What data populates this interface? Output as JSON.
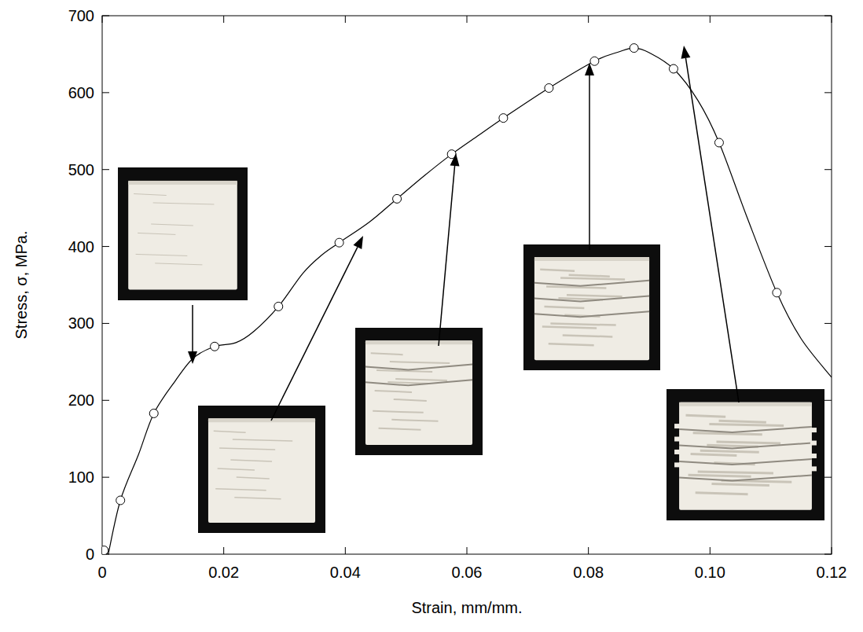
{
  "chart_data": {
    "type": "line",
    "x_label": "Strain, mm/mm.",
    "y_label": "Stress, σ, MPa.",
    "xlim": [
      0,
      0.12
    ],
    "ylim": [
      0,
      700
    ],
    "xticks": [
      0,
      0.02,
      0.04,
      0.06,
      0.08,
      {
        "value": 0.1,
        "label": "0.10"
      },
      0.12
    ],
    "yticks": [
      0,
      100,
      200,
      300,
      400,
      500,
      600,
      700
    ],
    "grid": false,
    "series": [
      {
        "x": [
          0.001,
          0.003,
          0.006,
          0.0085,
          0.012,
          0.015,
          0.0185,
          0.022,
          0.025,
          0.029,
          0.033,
          0.036,
          0.039,
          0.044,
          0.0485,
          0.053,
          0.0575,
          0.062,
          0.066,
          0.0735,
          0.081,
          0.085,
          0.0875,
          0.09,
          0.094,
          0.098,
          0.1015,
          0.106,
          0.111,
          0.115,
          0.12
        ],
        "values": [
          0,
          70,
          130,
          183,
          225,
          255,
          270,
          275,
          290,
          322,
          365,
          388,
          405,
          432,
          462,
          492,
          520,
          545,
          567,
          606,
          641,
          653,
          658,
          652,
          631,
          590,
          535,
          440,
          340,
          280,
          230
        ],
        "color": "#000000",
        "marker": "none",
        "line_style": "solid"
      },
      {
        "x": [
          0.0003,
          0.003,
          0.0085,
          0.0185,
          0.029,
          0.039,
          0.0485,
          0.0575,
          0.066,
          0.0735,
          0.081,
          0.0875,
          0.094,
          0.1015,
          0.111
        ],
        "values": [
          5,
          70,
          183,
          270,
          322,
          405,
          462,
          520,
          567,
          606,
          641,
          658,
          631,
          535,
          340
        ],
        "color": "#000000",
        "marker": "circle",
        "line_style": "none"
      }
    ]
  }
}
